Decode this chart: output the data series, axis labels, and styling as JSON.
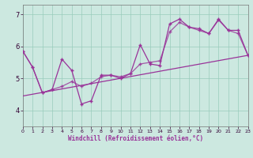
{
  "xlabel": "Windchill (Refroidissement éolien,°C)",
  "bg_color": "#cce8e0",
  "line_color": "#993399",
  "grid_color": "#99ccbb",
  "xlim": [
    0,
    23
  ],
  "ylim": [
    3.5,
    7.3
  ],
  "xticks": [
    0,
    1,
    2,
    3,
    4,
    5,
    6,
    7,
    8,
    9,
    10,
    11,
    12,
    13,
    14,
    15,
    16,
    17,
    18,
    19,
    20,
    21,
    22,
    23
  ],
  "yticks": [
    4,
    5,
    6,
    7
  ],
  "curve1_x": [
    0,
    1,
    2,
    3,
    4,
    5,
    6,
    7,
    8,
    9,
    10,
    11,
    12,
    13,
    14,
    15,
    16,
    17,
    18,
    19,
    20,
    21,
    22,
    23
  ],
  "curve1_y": [
    5.85,
    5.35,
    4.55,
    4.65,
    5.6,
    5.25,
    4.2,
    4.3,
    5.1,
    5.1,
    5.0,
    5.15,
    6.05,
    5.45,
    5.4,
    6.7,
    6.85,
    6.6,
    6.55,
    6.4,
    6.85,
    6.5,
    6.5,
    5.72
  ],
  "curve2_x": [
    0,
    1,
    2,
    3,
    4,
    5,
    6,
    7,
    8,
    9,
    10,
    11,
    12,
    13,
    14,
    15,
    16,
    17,
    18,
    19,
    20,
    21,
    22,
    23
  ],
  "curve2_y": [
    5.85,
    5.35,
    4.55,
    4.65,
    4.75,
    4.9,
    4.75,
    4.85,
    5.05,
    5.1,
    5.05,
    5.15,
    5.45,
    5.5,
    5.55,
    6.45,
    6.75,
    6.6,
    6.5,
    6.4,
    6.82,
    6.5,
    6.4,
    5.72
  ],
  "trend_x": [
    0,
    23
  ],
  "trend_y": [
    4.45,
    5.72
  ]
}
